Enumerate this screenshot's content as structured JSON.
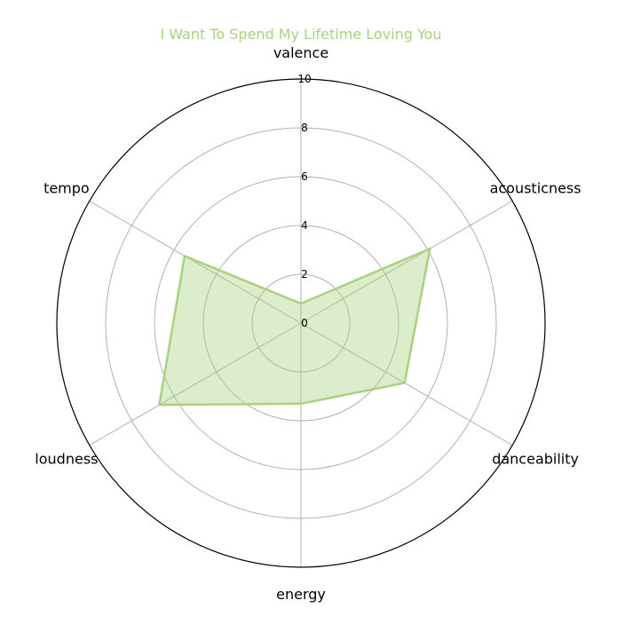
{
  "chart_data": {
    "type": "radar",
    "title": "I Want To Spend My Lifetime Loving You",
    "axes": [
      "valence",
      "acousticness",
      "danceability",
      "energy",
      "loudness",
      "tempo"
    ],
    "series": [
      {
        "values": [
          0.8,
          6.1,
          4.9,
          3.3,
          6.7,
          5.5
        ]
      }
    ],
    "rlim": [
      0,
      10
    ],
    "rticks": [
      "0",
      "2",
      "4",
      "6",
      "8",
      "10"
    ],
    "grid": true
  },
  "colors": {
    "series": "#a8d27f",
    "title": "#a8d27f",
    "grid": "#b0b0b0",
    "frame": "#000000"
  }
}
